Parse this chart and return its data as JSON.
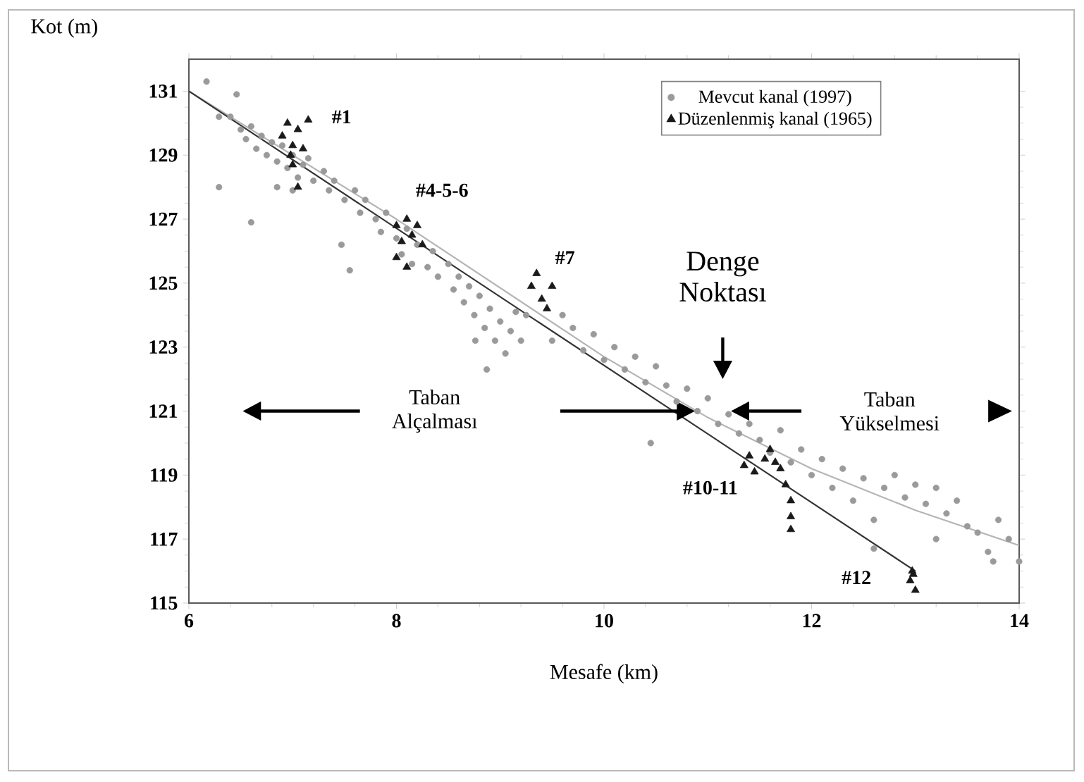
{
  "chart_data": {
    "type": "scatter",
    "xlabel": "Mesafe (km)",
    "ylabel": "Kot (m)",
    "xlim": [
      6,
      14
    ],
    "ylim": [
      115,
      132
    ],
    "xticks": [
      6,
      8,
      10,
      12,
      14
    ],
    "yticks": [
      115,
      117,
      119,
      121,
      123,
      125,
      127,
      129,
      131
    ],
    "legend": "top right",
    "series": [
      {
        "name": "Mevcut kanal (1997)",
        "color": "#9a9a9a",
        "marker": "circle",
        "x": [
          6.4,
          6.5,
          6.55,
          6.6,
          6.65,
          6.7,
          6.75,
          6.8,
          6.85,
          6.9,
          6.95,
          7.0,
          7.05,
          7.1,
          7.15,
          7.2,
          7.3,
          7.35,
          7.4,
          7.5,
          7.6,
          7.65,
          7.7,
          7.8,
          7.85,
          7.9,
          8.0,
          8.05,
          8.1,
          8.15,
          8.2,
          8.3,
          8.35,
          8.4,
          8.5,
          8.55,
          8.6,
          8.65,
          8.7,
          8.75,
          8.8,
          8.85,
          8.9,
          8.95,
          9.0,
          9.05,
          9.1,
          9.15,
          9.2,
          9.25,
          6.17,
          6.29,
          6.29,
          6.46,
          6.6,
          7.47,
          7.55,
          8.87,
          8.76,
          6.85,
          7.0,
          9.5,
          9.6,
          9.7,
          9.8,
          9.9,
          10.0,
          10.1,
          10.2,
          10.3,
          10.4,
          10.5,
          10.45,
          10.6,
          10.7,
          10.8,
          10.9,
          11.0,
          11.1,
          11.2,
          11.3,
          11.4,
          11.5,
          11.6,
          11.7,
          11.8,
          11.9,
          12.0,
          12.1,
          12.2,
          12.3,
          12.4,
          12.5,
          12.6,
          12.7,
          12.8,
          12.9,
          13.0,
          13.1,
          13.2,
          13.3,
          13.4,
          13.5,
          13.6,
          13.7,
          13.8,
          13.9,
          14.0,
          13.75,
          13.2,
          12.6
        ],
        "values": [
          130.2,
          129.8,
          129.5,
          129.9,
          129.2,
          129.6,
          129.0,
          129.4,
          128.8,
          129.3,
          128.6,
          129.0,
          128.3,
          128.7,
          128.9,
          128.2,
          128.5,
          127.9,
          128.2,
          127.6,
          127.9,
          127.2,
          127.6,
          127.0,
          126.6,
          127.2,
          126.4,
          125.9,
          126.7,
          125.6,
          126.2,
          125.5,
          126.0,
          125.2,
          125.6,
          124.8,
          125.2,
          124.4,
          124.9,
          124.0,
          124.6,
          123.6,
          124.2,
          123.2,
          123.8,
          122.8,
          123.5,
          124.1,
          123.2,
          124.0,
          131.3,
          130.2,
          128.0,
          130.9,
          126.9,
          126.2,
          125.4,
          122.3,
          123.2,
          128.0,
          127.9,
          123.2,
          124.0,
          123.6,
          122.9,
          123.4,
          122.6,
          123.0,
          122.3,
          122.7,
          121.9,
          122.4,
          120.0,
          121.8,
          121.3,
          121.7,
          121.0,
          121.4,
          120.6,
          120.9,
          120.3,
          120.6,
          120.1,
          119.7,
          120.4,
          119.4,
          119.8,
          119.0,
          119.5,
          118.6,
          119.2,
          118.2,
          118.9,
          117.6,
          118.6,
          119.0,
          118.3,
          118.7,
          118.1,
          118.6,
          117.8,
          118.2,
          117.4,
          117.2,
          116.6,
          117.6,
          117.0,
          116.3,
          116.3,
          117.0,
          116.7
        ]
      },
      {
        "name": "Düzenlenmiş kanal (1965)",
        "color": "#1a1a1a",
        "marker": "triangle",
        "x": [
          6.9,
          6.95,
          7.0,
          7.05,
          7.1,
          7.15,
          7.0,
          7.05,
          6.98,
          8.0,
          8.05,
          8.1,
          8.15,
          8.2,
          8.25,
          8.1,
          8.0,
          9.3,
          9.35,
          9.4,
          9.5,
          9.45,
          11.35,
          11.4,
          11.45,
          11.55,
          11.6,
          11.7,
          11.75,
          11.8,
          11.8,
          11.8,
          11.65,
          12.95,
          12.97,
          13.0,
          12.98
        ],
        "values": [
          129.6,
          130.0,
          129.3,
          129.8,
          129.2,
          130.1,
          128.7,
          128.0,
          129.0,
          126.8,
          126.3,
          127.0,
          126.5,
          126.8,
          126.2,
          125.5,
          125.8,
          124.9,
          125.3,
          124.5,
          124.9,
          124.2,
          119.3,
          119.6,
          119.1,
          119.5,
          119.8,
          119.2,
          118.7,
          118.2,
          117.7,
          117.3,
          119.4,
          115.7,
          116.0,
          115.4,
          115.9
        ]
      },
      {
        "type": "line",
        "color": "#b5b5b5",
        "x": [
          6,
          8,
          10,
          11,
          12,
          13,
          14
        ],
        "values": [
          131.0,
          127.0,
          122.7,
          120.8,
          119.2,
          117.9,
          116.8
        ]
      },
      {
        "type": "line",
        "color": "#333333",
        "x": [
          6,
          13
        ],
        "values": [
          131.0,
          116.0
        ]
      }
    ],
    "annotations": [
      "#1",
      "#4-5-6",
      "#7",
      "#10-11",
      "#12",
      "Denge Noktası",
      "Taban Alçalması",
      "Taban Yükselmesi"
    ]
  }
}
